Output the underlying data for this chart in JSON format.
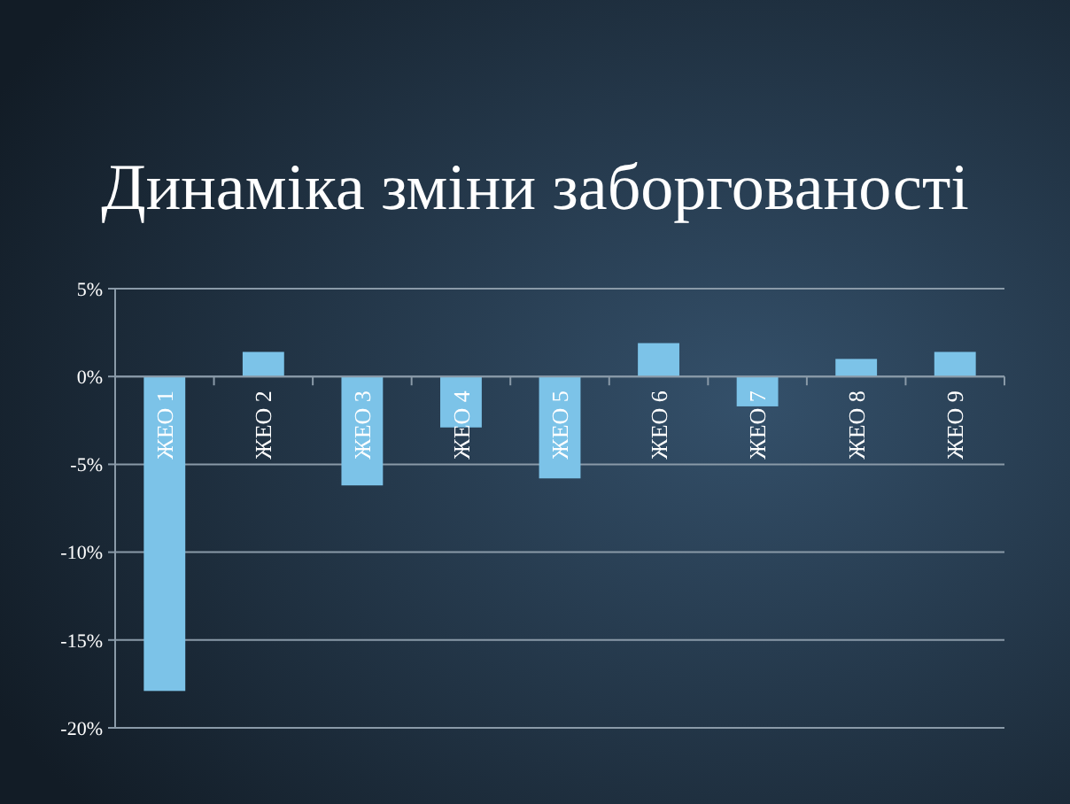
{
  "chart_data": {
    "type": "bar",
    "title": "Динаміка зміни заборгованості",
    "categories": [
      "ЖЕО 1",
      "ЖЕО 2",
      "ЖЕО 3",
      "ЖЕО 4",
      "ЖЕО 5",
      "ЖЕО 6",
      "ЖЕО 7",
      "ЖЕО 8",
      "ЖЕО 9"
    ],
    "values": [
      -17.9,
      1.4,
      -6.2,
      -2.9,
      -5.8,
      1.9,
      -1.7,
      1.0,
      1.4
    ],
    "color": "#7cc3e8",
    "ylim": [
      -20,
      5
    ],
    "yticks": [
      {
        "value": -20,
        "label": "-20%"
      },
      {
        "value": -15,
        "label": "-15%"
      },
      {
        "value": -10,
        "label": "-10%"
      },
      {
        "value": -5,
        "label": "-5%"
      },
      {
        "value": 0,
        "label": "0%"
      },
      {
        "value": 5,
        "label": "5%"
      }
    ],
    "grid": "y"
  }
}
